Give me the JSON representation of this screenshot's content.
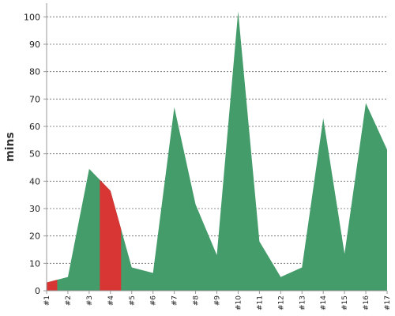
{
  "chart_data": {
    "type": "area",
    "title": "",
    "xlabel": "",
    "ylabel": "mins",
    "ylim": [
      0,
      105
    ],
    "yticks": [
      0,
      10,
      20,
      30,
      40,
      50,
      60,
      70,
      80,
      90,
      100
    ],
    "grid": true,
    "categories": [
      "#1",
      "#2",
      "#3",
      "#4",
      "#5",
      "#6",
      "#7",
      "#8",
      "#9",
      "#10",
      "#11",
      "#12",
      "#13",
      "#14",
      "#15",
      "#16",
      "#17"
    ],
    "values": [
      3,
      5,
      44.5,
      36.5,
      8.5,
      6.5,
      67,
      31.5,
      13,
      102,
      18,
      5,
      8.5,
      63,
      13.5,
      68.5,
      51.5
    ],
    "colors": {
      "default": "#459c6b",
      "highlight": "#d73634"
    },
    "highlight_ranges": [
      {
        "from": 0,
        "to": 0.5
      },
      {
        "from": 2.5,
        "to": 3.5
      }
    ]
  }
}
